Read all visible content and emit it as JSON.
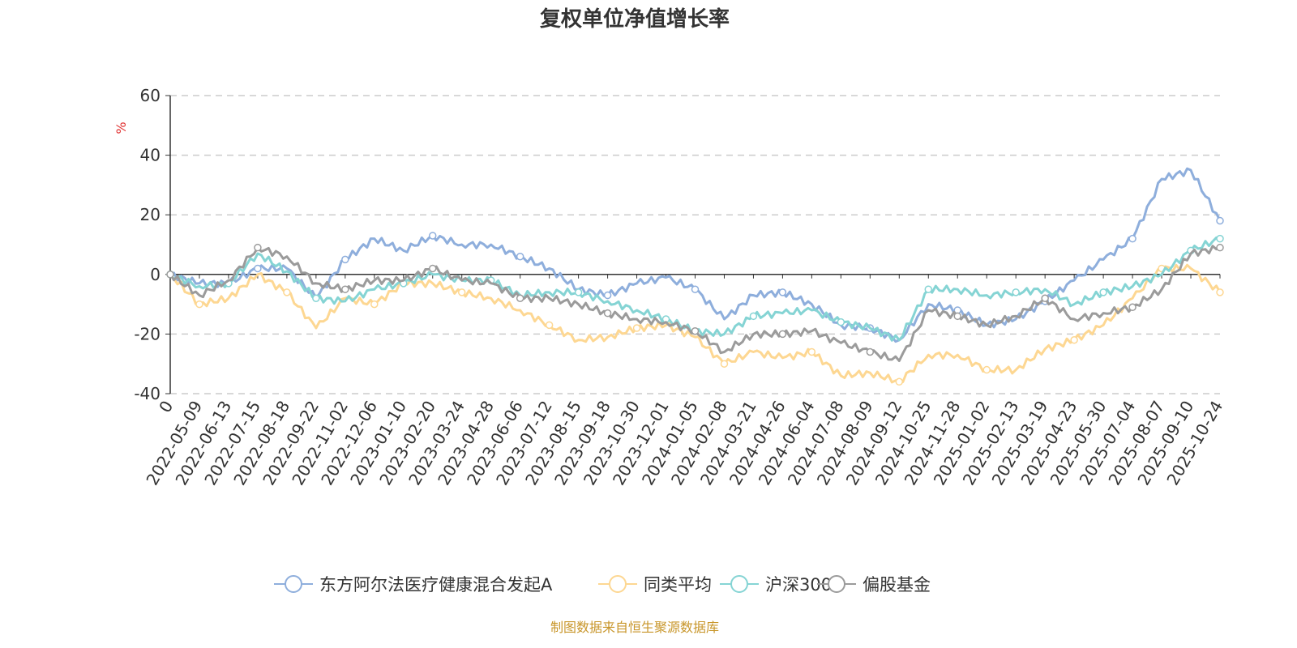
{
  "chart_data": {
    "type": "line",
    "title": "复权单位净值增长率",
    "ylabel": "%",
    "xlabel": "",
    "ylim": [
      -40,
      60
    ],
    "yticks": [
      60,
      40,
      20,
      0,
      -20,
      -40
    ],
    "grid": true,
    "legend_position": "bottom-center",
    "categories": [
      "0",
      "2022-05-09",
      "2022-06-13",
      "2022-07-15",
      "2022-08-18",
      "2022-09-22",
      "2022-11-02",
      "2022-12-06",
      "2023-01-10",
      "2023-02-20",
      "2023-03-24",
      "2023-04-28",
      "2023-06-06",
      "2023-07-12",
      "2023-08-15",
      "2023-09-18",
      "2023-10-30",
      "2023-12-01",
      "2024-01-05",
      "2024-02-08",
      "2024-03-21",
      "2024-04-26",
      "2024-06-04",
      "2024-07-08",
      "2024-08-09",
      "2024-09-12",
      "2024-10-25",
      "2024-11-28",
      "2025-01-02",
      "2025-02-13",
      "2025-03-19",
      "2025-04-23",
      "2025-05-30",
      "2025-07-04",
      "2025-08-07",
      "2025-09-10",
      "2025-10-24"
    ],
    "series": [
      {
        "name": "东方阿尔法医疗健康混合发起A",
        "color": "#8eaedc",
        "values": [
          0,
          -3,
          -3,
          2,
          2,
          -8,
          5,
          12,
          8,
          13,
          10,
          10,
          6,
          2,
          -5,
          -7,
          -3,
          -1,
          -5,
          -15,
          -7,
          -6,
          -10,
          -17,
          -18,
          -22,
          -10,
          -12,
          -17,
          -15,
          -9,
          -2,
          5,
          12,
          32,
          35,
          18
        ]
      },
      {
        "name": "同类平均",
        "color": "#fdd792",
        "values": [
          0,
          -10,
          -8,
          0,
          -6,
          -18,
          -8,
          -10,
          -3,
          -3,
          -6,
          -8,
          -12,
          -17,
          -22,
          -21,
          -18,
          -17,
          -21,
          -30,
          -26,
          -28,
          -26,
          -34,
          -33,
          -36,
          -27,
          -27,
          -32,
          -32,
          -25,
          -22,
          -17,
          -8,
          2,
          2,
          -6
        ]
      },
      {
        "name": "沪深300",
        "color": "#85d4d4",
        "values": [
          0,
          -4,
          -3,
          7,
          1,
          -8,
          -9,
          -5,
          -3,
          0,
          -2,
          -2,
          -7,
          -6,
          -6,
          -9,
          -12,
          -15,
          -19,
          -20,
          -14,
          -13,
          -12,
          -16,
          -18,
          -22,
          -5,
          -5,
          -7,
          -6,
          -5,
          -10,
          -6,
          -4,
          0,
          8,
          12
        ]
      },
      {
        "name": "偏股基金",
        "color": "#9b9b9b",
        "values": [
          0,
          -7,
          -2,
          9,
          6,
          -3,
          -5,
          -2,
          -2,
          2,
          -2,
          -3,
          -8,
          -8,
          -10,
          -13,
          -15,
          -16,
          -19,
          -26,
          -20,
          -20,
          -19,
          -23,
          -26,
          -29,
          -12,
          -14,
          -17,
          -14,
          -8,
          -15,
          -13,
          -11,
          -5,
          7,
          9
        ]
      }
    ],
    "source": "制图数据来自恒生聚源数据库"
  }
}
